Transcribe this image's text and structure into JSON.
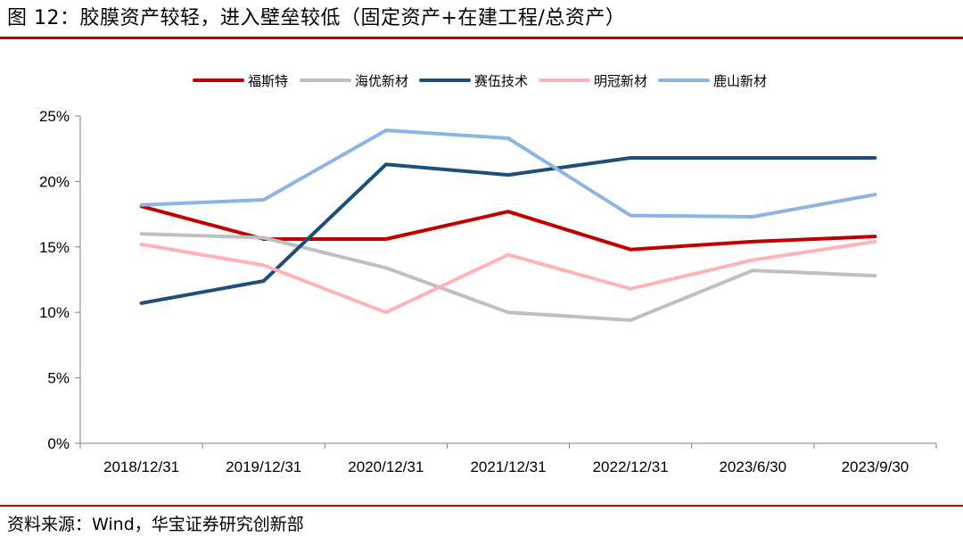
{
  "header": {
    "title": "图 12：胶膜资产较轻，进入壁垒较低（固定资产+在建工程/总资产）"
  },
  "footer": {
    "source": "资料来源：Wind，华宝证券研究创新部"
  },
  "chart_data": {
    "type": "line",
    "categories": [
      "2018/12/31",
      "2019/12/31",
      "2020/12/31",
      "2021/12/31",
      "2022/12/31",
      "2023/6/30",
      "2023/9/30"
    ],
    "ylim": [
      0,
      25
    ],
    "yticks": [
      0,
      5,
      10,
      15,
      20,
      25
    ],
    "ytick_labels": [
      "0%",
      "5%",
      "10%",
      "15%",
      "20%",
      "25%"
    ],
    "grid": false,
    "legend_position": "top",
    "series": [
      {
        "name": "福斯特",
        "color": "#c00000",
        "values": [
          18.1,
          15.6,
          15.6,
          17.7,
          14.8,
          15.4,
          15.8
        ]
      },
      {
        "name": "海优新材",
        "color": "#bfbfbf",
        "values": [
          16.0,
          15.7,
          13.4,
          10.0,
          9.4,
          13.2,
          12.8
        ]
      },
      {
        "name": "赛伍技术",
        "color": "#1f4e79",
        "values": [
          10.7,
          12.4,
          21.3,
          20.5,
          21.8,
          21.8,
          21.8
        ]
      },
      {
        "name": "明冠新材",
        "color": "#ffb3b8",
        "values": [
          15.2,
          13.6,
          10.0,
          14.4,
          11.8,
          14.0,
          15.4
        ]
      },
      {
        "name": "鹿山新材",
        "color": "#8eb4e3",
        "values": [
          18.2,
          18.6,
          23.9,
          23.3,
          17.4,
          17.3,
          19.0
        ]
      }
    ]
  }
}
